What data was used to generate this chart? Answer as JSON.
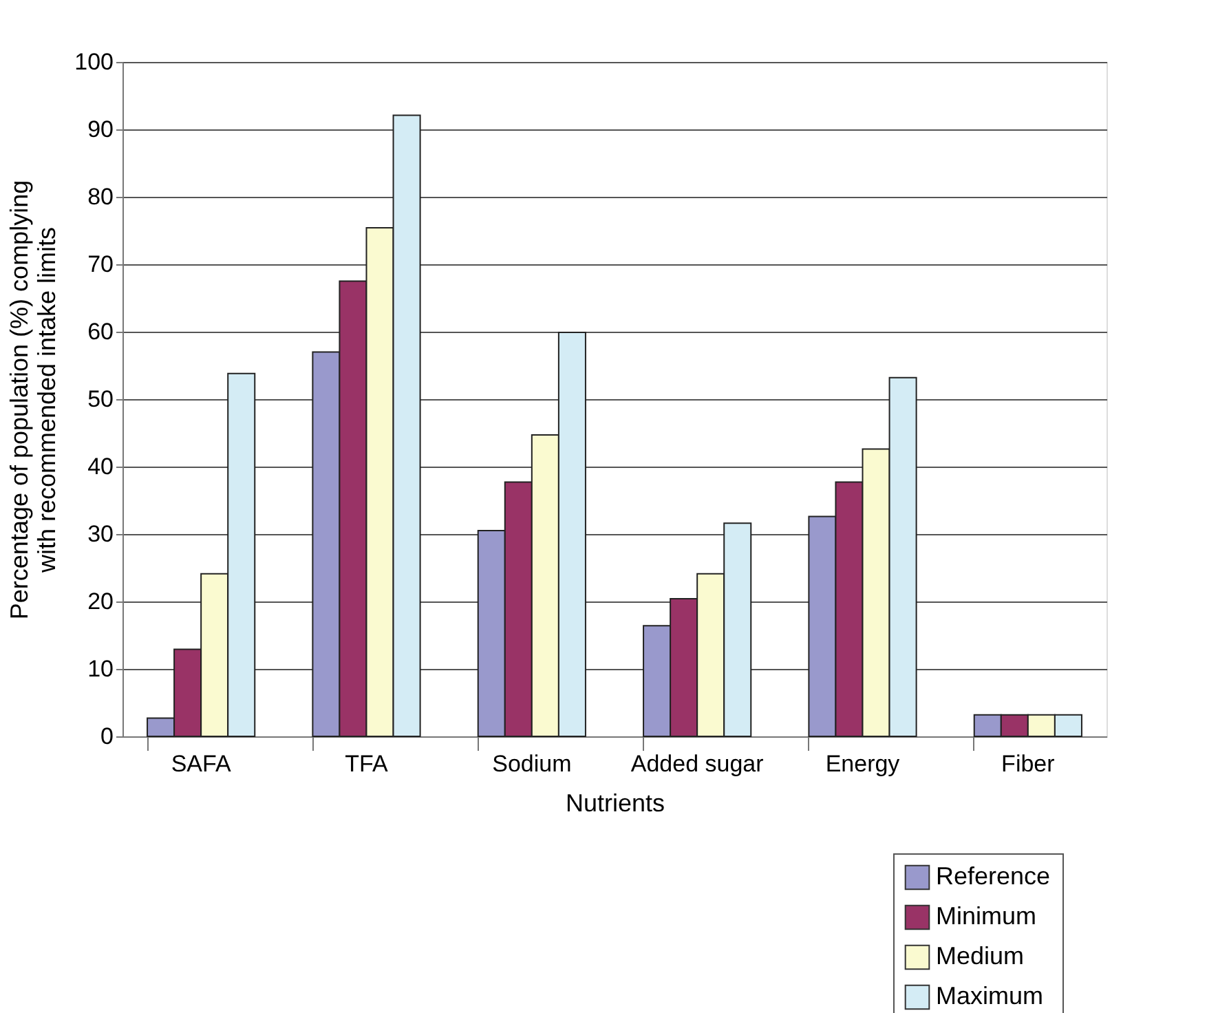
{
  "chart_data": {
    "type": "bar",
    "xlabel": "Nutrients",
    "ylabel": "Percentage of population (%) complying with recommended intake limits",
    "categories": [
      "SAFA",
      "TFA",
      "Sodium",
      "Added sugar",
      "Energy",
      "Fiber"
    ],
    "series": [
      {
        "name": "Reference",
        "color": "#9999cc",
        "values": [
          2.7,
          57.0,
          30.5,
          16.4,
          32.6,
          3.2
        ]
      },
      {
        "name": "Minimum",
        "color": "#993366",
        "values": [
          12.9,
          67.5,
          37.7,
          20.4,
          37.7,
          3.2
        ]
      },
      {
        "name": "Medium",
        "color": "#fafad0",
        "values": [
          24.1,
          75.4,
          44.7,
          24.1,
          42.6,
          3.2
        ]
      },
      {
        "name": "Maximum",
        "color": "#d4ecf5",
        "values": [
          53.8,
          92.1,
          59.9,
          31.6,
          53.2,
          3.2
        ]
      }
    ],
    "ylim": [
      0,
      100
    ],
    "yticks": [
      0,
      10,
      20,
      30,
      40,
      50,
      60,
      70,
      80,
      90,
      100
    ],
    "grid": "y",
    "legend": "bottom right"
  }
}
